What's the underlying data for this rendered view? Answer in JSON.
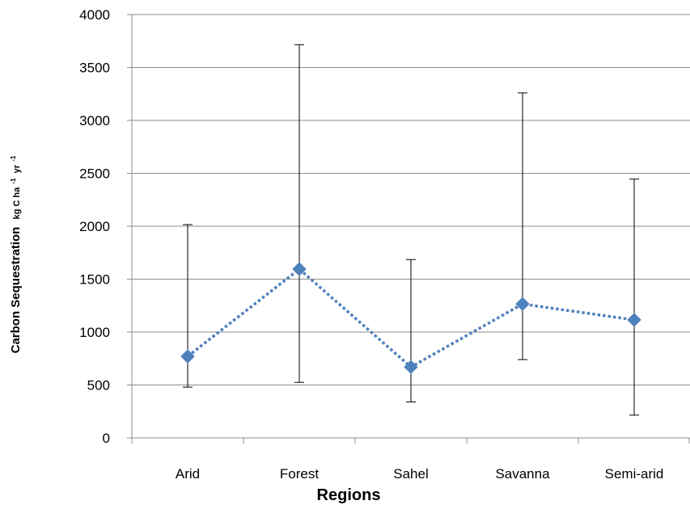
{
  "chart_data": {
    "type": "line",
    "title": "",
    "xlabel": "Regions",
    "ylabel": {
      "text": "Carbon Sequestration",
      "unit_main": "kg C ha",
      "unit_exp1": "-1",
      "unit_mid": "yr",
      "unit_exp2": "-1"
    },
    "ylim": [
      0,
      4000
    ],
    "ytick_step": 500,
    "ytick_labels": [
      "0",
      "500",
      "1000",
      "1500",
      "2000",
      "2500",
      "3000",
      "3500",
      "4000"
    ],
    "grid": true,
    "legend": "none",
    "categories": [
      "Arid",
      "Forest",
      "Sahel",
      "Savanna",
      "Semi-arid"
    ],
    "series": [
      {
        "values": [
          770,
          1595,
          670,
          1265,
          1115
        ],
        "error_low": [
          480,
          525,
          340,
          740,
          215
        ],
        "error_high": [
          2015,
          3715,
          1685,
          3260,
          2445
        ],
        "line_style": "dotted",
        "marker": "diamond",
        "color": "#4f81bd"
      }
    ],
    "colors": {
      "series": "#4f81bd",
      "grid": "#8c8c8c",
      "axis": "#8c8c8c",
      "errorbar": "#000000"
    }
  }
}
